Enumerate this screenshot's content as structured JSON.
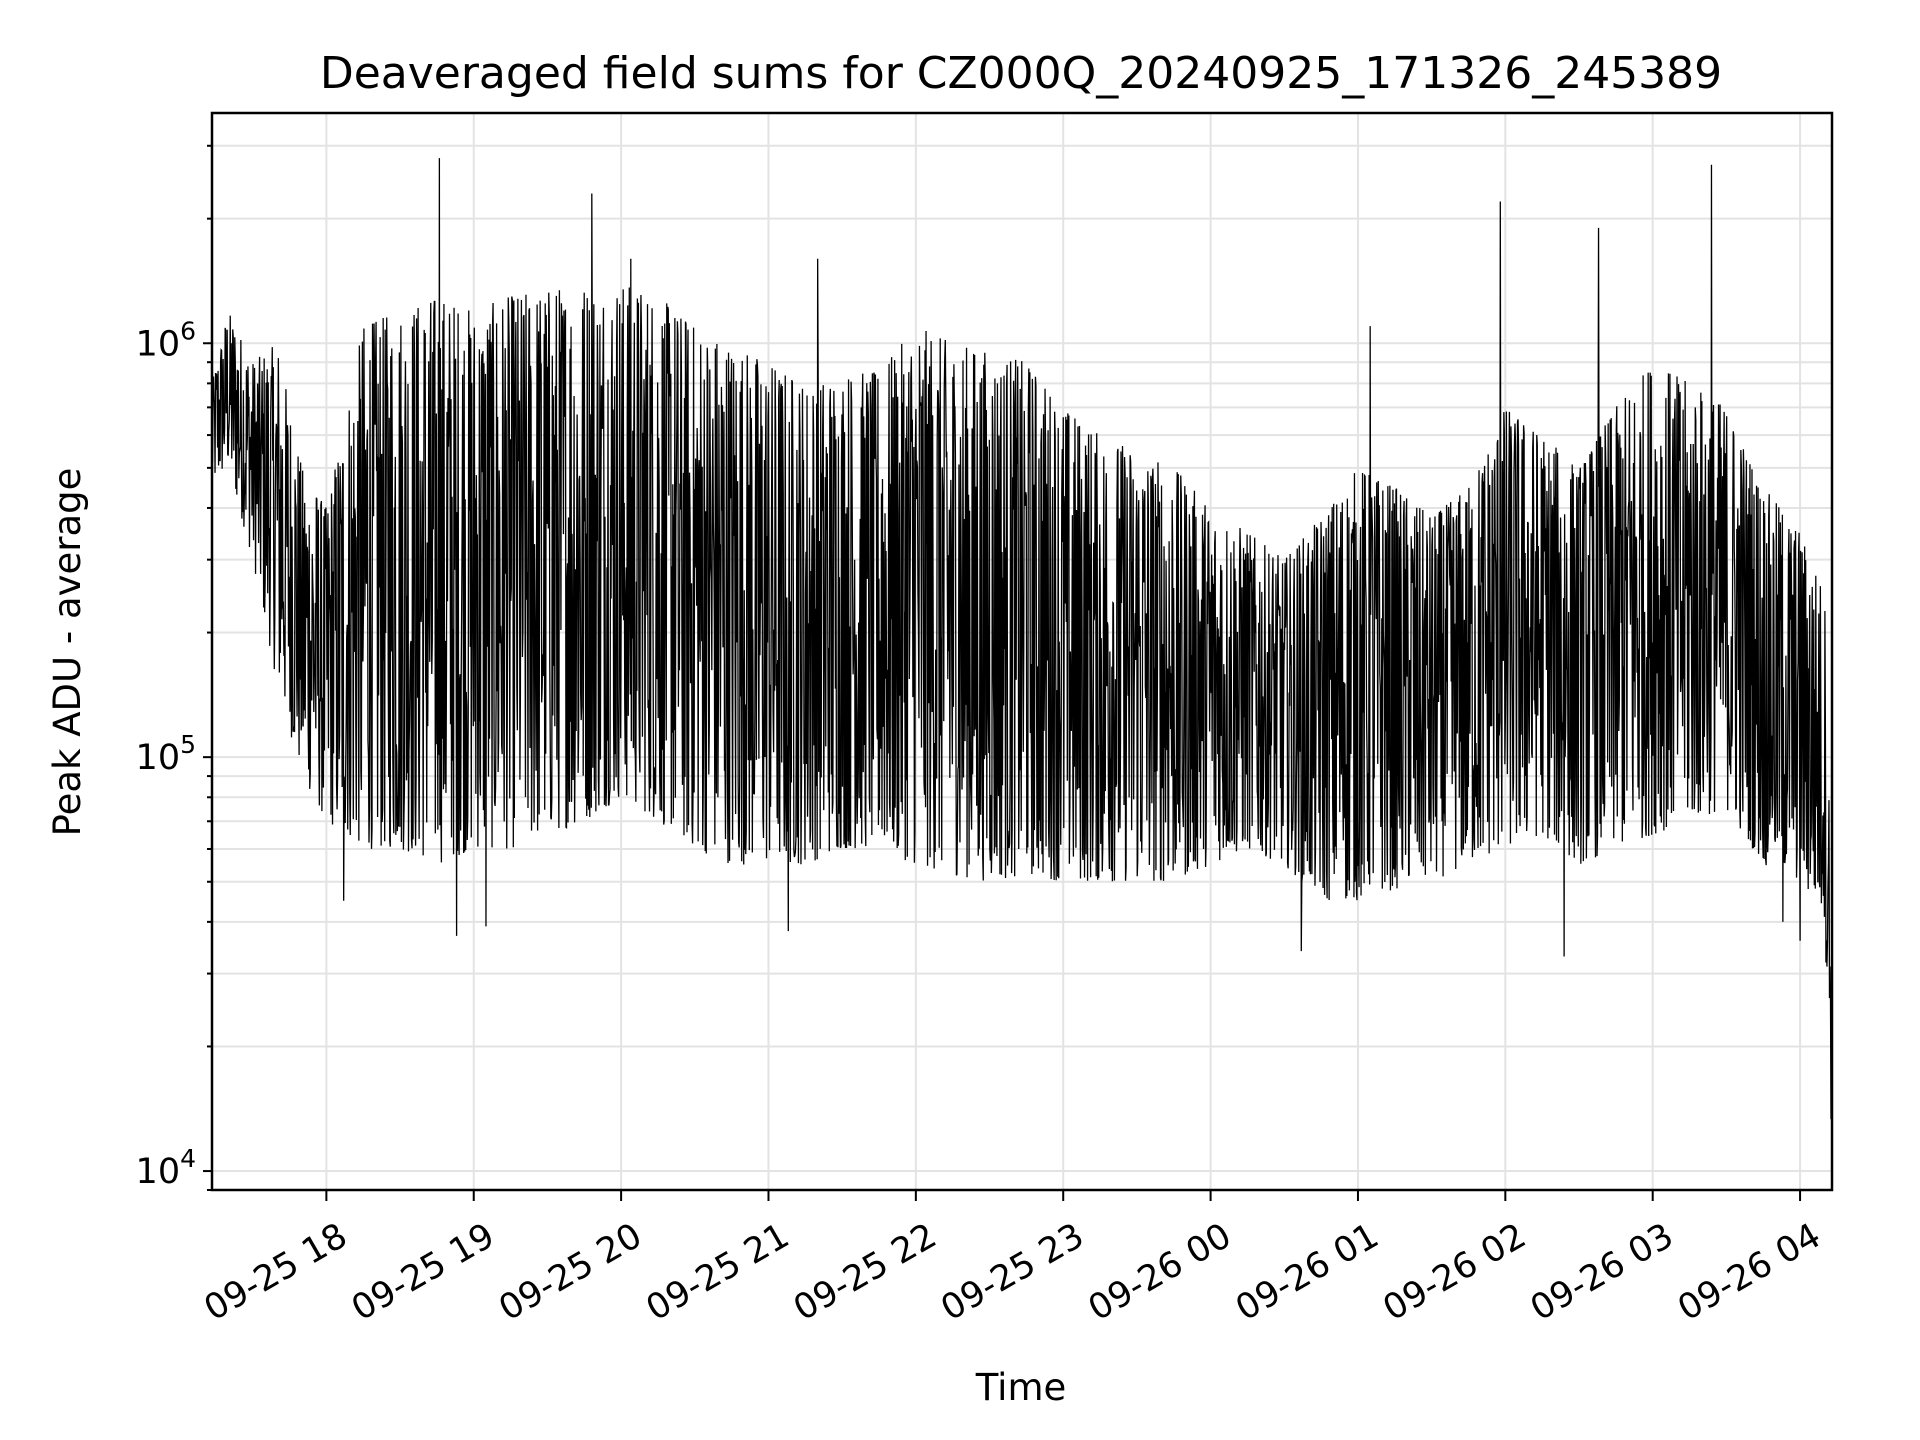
{
  "chart_data": {
    "type": "line",
    "title": "Deaveraged field sums for CZ000Q_20240925_171326_245389",
    "xlabel": "Time",
    "ylabel": "Peak ADU - average",
    "yscale": "log",
    "ylim": [
      9000,
      3600000
    ],
    "xlim": [
      "2024-09-25 17:13:26",
      "2024-09-26 04:13:00"
    ],
    "grid": true,
    "line_color": "#000000",
    "x_ticks": [
      {
        "time": "2024-09-25 18:00",
        "label": "09-25 18"
      },
      {
        "time": "2024-09-25 19:00",
        "label": "09-25 19"
      },
      {
        "time": "2024-09-25 20:00",
        "label": "09-25 20"
      },
      {
        "time": "2024-09-25 21:00",
        "label": "09-25 21"
      },
      {
        "time": "2024-09-25 22:00",
        "label": "09-25 22"
      },
      {
        "time": "2024-09-25 23:00",
        "label": "09-25 23"
      },
      {
        "time": "2024-09-26 00:00",
        "label": "09-26 00"
      },
      {
        "time": "2024-09-26 01:00",
        "label": "09-26 01"
      },
      {
        "time": "2024-09-26 02:00",
        "label": "09-26 02"
      },
      {
        "time": "2024-09-26 03:00",
        "label": "09-26 03"
      },
      {
        "time": "2024-09-26 04:00",
        "label": "09-26 04"
      }
    ],
    "y_ticks": [
      {
        "value": 10000,
        "base": "10",
        "exp": "4"
      },
      {
        "value": 100000,
        "base": "10",
        "exp": "5"
      },
      {
        "value": 1000000,
        "base": "10",
        "exp": "6"
      }
    ],
    "series": [
      {
        "envelope_note_free": true,
        "times": [
          "2024-09-25 17:13:26",
          "2024-09-25 17:20",
          "2024-09-25 17:30",
          "2024-09-25 17:40",
          "2024-09-25 17:50",
          "2024-09-25 18:00",
          "2024-09-25 18:15",
          "2024-09-25 18:30",
          "2024-09-25 18:45",
          "2024-09-25 19:00",
          "2024-09-25 19:15",
          "2024-09-25 19:30",
          "2024-09-25 19:45",
          "2024-09-25 20:00",
          "2024-09-25 20:15",
          "2024-09-25 20:30",
          "2024-09-25 20:45",
          "2024-09-25 21:00",
          "2024-09-25 21:15",
          "2024-09-25 21:30",
          "2024-09-25 21:45",
          "2024-09-25 22:00",
          "2024-09-25 22:15",
          "2024-09-25 22:30",
          "2024-09-25 22:45",
          "2024-09-25 23:00",
          "2024-09-25 23:15",
          "2024-09-25 23:30",
          "2024-09-25 23:45",
          "2024-09-26 00:00",
          "2024-09-26 00:15",
          "2024-09-26 00:30",
          "2024-09-26 00:45",
          "2024-09-26 01:00",
          "2024-09-26 01:15",
          "2024-09-26 01:30",
          "2024-09-26 01:45",
          "2024-09-26 02:00",
          "2024-09-26 02:15",
          "2024-09-26 02:30",
          "2024-09-26 02:45",
          "2024-09-26 03:00",
          "2024-09-26 03:15",
          "2024-09-26 03:30",
          "2024-09-26 03:45",
          "2024-09-26 04:00",
          "2024-09-26 04:10",
          "2024-09-26 04:13"
        ],
        "upper": [
          800000,
          1200000,
          900000,
          1000000,
          500000,
          400000,
          1100000,
          1200000,
          1300000,
          1200000,
          1300000,
          1350000,
          1400000,
          1400000,
          1300000,
          1100000,
          1000000,
          900000,
          800000,
          850000,
          850000,
          1100000,
          1000000,
          950000,
          900000,
          700000,
          600000,
          550000,
          500000,
          400000,
          350000,
          300000,
          380000,
          500000,
          450000,
          380000,
          450000,
          700000,
          600000,
          500000,
          700000,
          900000,
          800000,
          700000,
          450000,
          350000,
          250000,
          40000
        ],
        "lower": [
          450000,
          500000,
          300000,
          150000,
          90000,
          70000,
          60000,
          60000,
          55000,
          60000,
          60000,
          65000,
          70000,
          80000,
          70000,
          60000,
          55000,
          55000,
          55000,
          60000,
          60000,
          55000,
          52000,
          50000,
          52000,
          50000,
          50000,
          50000,
          50000,
          55000,
          60000,
          55000,
          45000,
          45000,
          48000,
          50000,
          55000,
          60000,
          65000,
          55000,
          60000,
          65000,
          70000,
          75000,
          55000,
          50000,
          40000,
          11000
        ],
        "peaks": [
          {
            "time": "2024-09-25 18:46",
            "value": 2800000
          },
          {
            "time": "2024-09-25 19:48",
            "value": 2300000
          },
          {
            "time": "2024-09-25 20:04",
            "value": 1600000
          },
          {
            "time": "2024-09-25 21:20",
            "value": 1600000
          },
          {
            "time": "2024-09-26 01:58",
            "value": 2200000
          },
          {
            "time": "2024-09-26 02:38",
            "value": 1900000
          },
          {
            "time": "2024-09-26 03:24",
            "value": 2700000
          },
          {
            "time": "2024-09-26 01:05",
            "value": 1100000
          }
        ],
        "dips": [
          {
            "time": "2024-09-25 18:07",
            "value": 45000
          },
          {
            "time": "2024-09-25 18:53",
            "value": 37000
          },
          {
            "time": "2024-09-25 19:05",
            "value": 39000
          },
          {
            "time": "2024-09-25 21:08",
            "value": 38000
          },
          {
            "time": "2024-09-26 00:37",
            "value": 34000
          },
          {
            "time": "2024-09-26 02:24",
            "value": 33000
          },
          {
            "time": "2024-09-26 03:53",
            "value": 40000
          },
          {
            "time": "2024-09-26 04:00",
            "value": 36000
          }
        ]
      }
    ]
  }
}
